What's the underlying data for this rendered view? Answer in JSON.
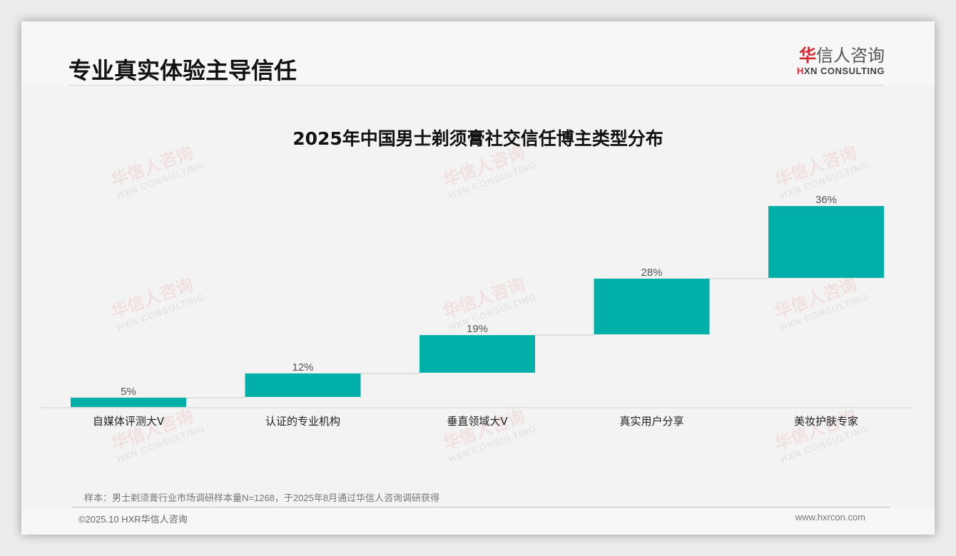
{
  "header": {
    "title": "专业真实体验主导信任",
    "logo": {
      "cn_first": "华",
      "cn_rest": "信人咨询",
      "en_first": "H",
      "en_rest": "XN CONSULTING"
    }
  },
  "watermark": {
    "cn": "华信人咨询",
    "en": "HXN CONSULTING"
  },
  "footer": {
    "note": "样本：男士剃须膏行业市场调研样本量N=1268，于2025年8月通过华信人咨询调研获得",
    "copyright": "©2025.10 HXR华信人咨询",
    "website": "www.hxrcon.com"
  },
  "colors": {
    "bar": "#00b0a8",
    "label": "#555555",
    "axis": "#d0d0d0",
    "connector": "#cfcfcf",
    "logo_red": "#d7262f"
  },
  "chart_data": {
    "type": "bar",
    "subtype": "waterfall",
    "title": "2025年中国男士剃须膏社交信任博主类型分布",
    "xlabel": "",
    "ylabel": "",
    "categories": [
      "自媒体评测大V",
      "认证的专业机构",
      "垂直领域大V",
      "真实用户分享",
      "美妆护肤专家"
    ],
    "values": [
      5,
      12,
      19,
      28,
      36
    ],
    "value_labels": [
      "5%",
      "12%",
      "19%",
      "28%",
      "36%"
    ],
    "cumulative": [
      5,
      17,
      36,
      64,
      100
    ],
    "ylim": [
      0,
      100
    ],
    "grid": false,
    "legend": null,
    "unit": "%"
  }
}
